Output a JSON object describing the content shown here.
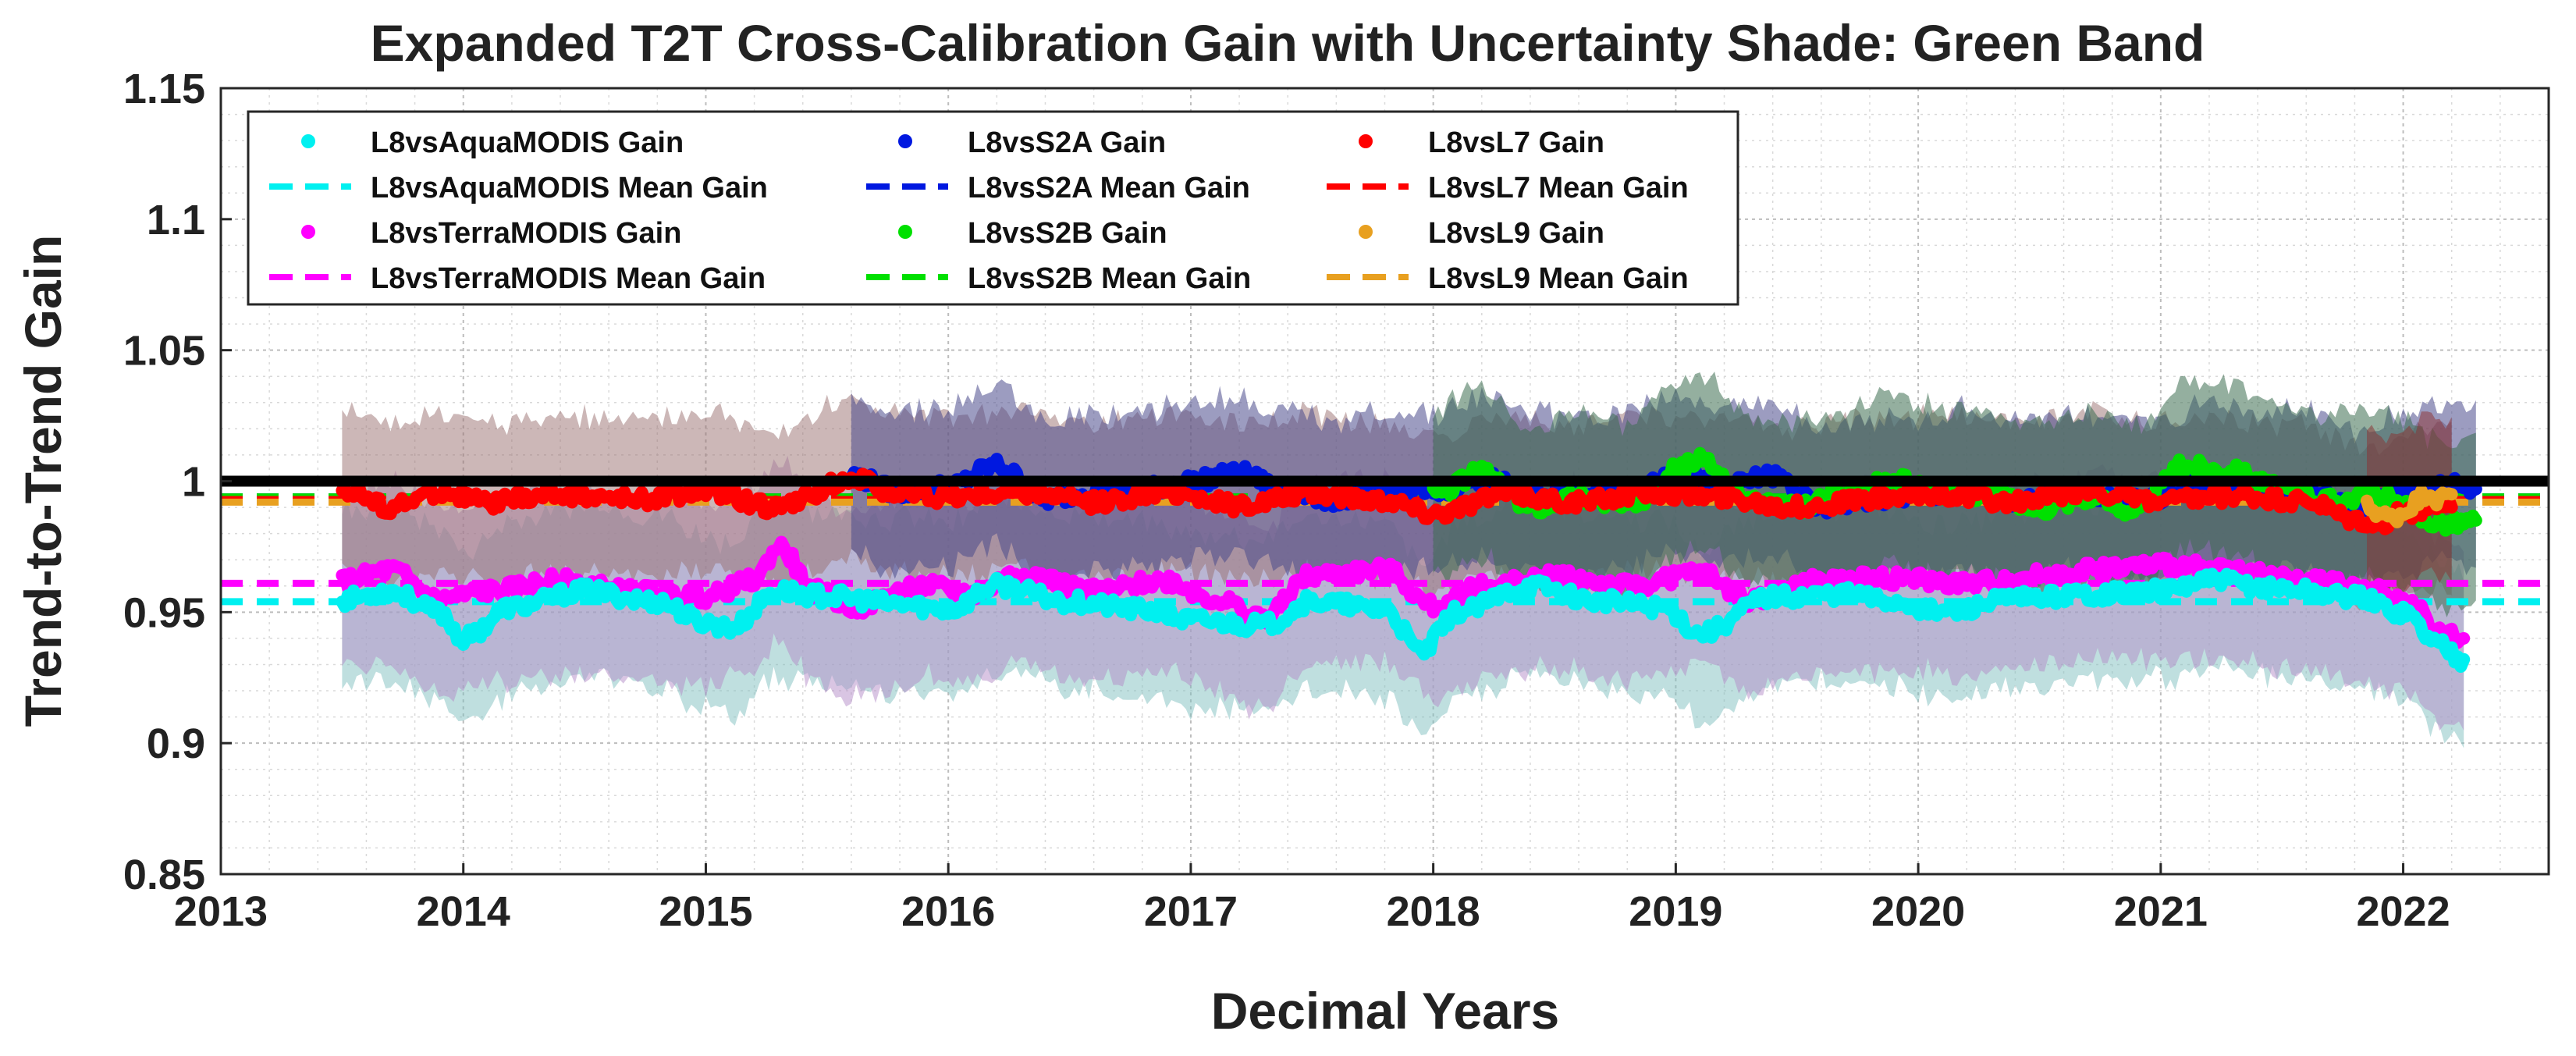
{
  "chart_data": {
    "type": "line",
    "title": "Expanded T2T Cross-Calibration Gain with Uncertainty Shade: Green Band",
    "xlabel": "Decimal Years",
    "ylabel": "Trend-to-Trend Gain",
    "xlim": [
      2013,
      2022.6
    ],
    "ylim": [
      0.85,
      1.15
    ],
    "xticks": [
      2013,
      2014,
      2015,
      2016,
      2017,
      2018,
      2019,
      2020,
      2021,
      2022
    ],
    "xtick_labels": [
      "2013",
      "2014",
      "2015",
      "2016",
      "2017",
      "2018",
      "2019",
      "2020",
      "2021",
      "2022"
    ],
    "yticks": [
      0.85,
      0.9,
      0.95,
      1.0,
      1.05,
      1.1,
      1.15
    ],
    "ytick_labels": [
      "0.85",
      "0.9",
      "0.95",
      "1",
      "1.05",
      "1.1",
      "1.15"
    ],
    "grid": true,
    "minor_grid": true,
    "legend_position": "top-left",
    "reference_line": {
      "y": 1.0,
      "color": "#000000"
    },
    "series": [
      {
        "name": "L8vsAquaMODIS Gain",
        "mean_name": "L8vsAquaMODIS Mean Gain",
        "color": "#00f0f0",
        "band_color": "#7fbfbf",
        "mean": 0.954,
        "band_half_width": 0.033,
        "x": [
          2013.5,
          2013.7,
          2013.9,
          2014.0,
          2014.2,
          2014.5,
          2014.8,
          2015.0,
          2015.1,
          2015.3,
          2015.5,
          2015.8,
          2016.0,
          2016.2,
          2016.5,
          2016.8,
          2017.0,
          2017.3,
          2017.5,
          2017.8,
          2017.95,
          2018.1,
          2018.4,
          2018.7,
          2018.95,
          2019.1,
          2019.4,
          2019.7,
          2019.9,
          2020.1,
          2020.4,
          2020.7,
          2021.0,
          2021.2,
          2021.5,
          2021.8,
          2022.0,
          2022.15,
          2022.25
        ],
        "y": [
          0.955,
          0.958,
          0.95,
          0.94,
          0.952,
          0.958,
          0.954,
          0.946,
          0.944,
          0.958,
          0.956,
          0.953,
          0.951,
          0.96,
          0.954,
          0.951,
          0.947,
          0.945,
          0.954,
          0.951,
          0.935,
          0.95,
          0.96,
          0.954,
          0.952,
          0.942,
          0.956,
          0.957,
          0.954,
          0.95,
          0.955,
          0.957,
          0.958,
          0.962,
          0.959,
          0.956,
          0.95,
          0.938,
          0.932
        ]
      },
      {
        "name": "L8vsTerraMODIS Gain",
        "mean_name": "L8vsTerraMODIS Mean Gain",
        "color": "#ff00ff",
        "band_color": "#b48cc8",
        "mean": 0.961,
        "band_half_width": 0.035,
        "x": [
          2013.5,
          2013.7,
          2013.9,
          2014.1,
          2014.4,
          2014.7,
          2015.0,
          2015.2,
          2015.3,
          2015.45,
          2015.6,
          2015.9,
          2016.1,
          2016.3,
          2016.6,
          2016.9,
          2017.1,
          2017.3,
          2017.5,
          2017.8,
          2018.0,
          2018.2,
          2018.5,
          2018.8,
          2019.1,
          2019.3,
          2019.6,
          2019.9,
          2020.2,
          2020.5,
          2020.8,
          2021.0,
          2021.3,
          2021.6,
          2021.9,
          2022.05,
          2022.15,
          2022.25
        ],
        "y": [
          0.962,
          0.966,
          0.955,
          0.958,
          0.962,
          0.958,
          0.956,
          0.962,
          0.975,
          0.958,
          0.952,
          0.96,
          0.957,
          0.965,
          0.958,
          0.962,
          0.955,
          0.948,
          0.964,
          0.966,
          0.952,
          0.96,
          0.964,
          0.96,
          0.965,
          0.955,
          0.962,
          0.963,
          0.961,
          0.964,
          0.967,
          0.968,
          0.966,
          0.962,
          0.958,
          0.952,
          0.942,
          0.94
        ]
      },
      {
        "name": "L8vsS2A Gain",
        "mean_name": "L8vsS2A Mean Gain",
        "color": "#0018e0",
        "band_color": "#4a4a8c",
        "mean": 0.994,
        "band_half_width": 0.03,
        "x": [
          2015.6,
          2015.8,
          2016.0,
          2016.2,
          2016.4,
          2016.6,
          2016.8,
          2017.0,
          2017.2,
          2017.4,
          2017.6,
          2017.8,
          2018.0,
          2018.2,
          2018.4,
          2018.6,
          2018.8,
          2019.0,
          2019.2,
          2019.4,
          2019.6,
          2019.8,
          2020.0,
          2020.2,
          2020.4,
          2020.6,
          2020.8,
          2021.0,
          2021.2,
          2021.4,
          2021.6,
          2021.8,
          2022.0,
          2022.2,
          2022.3
        ],
        "y": [
          1.002,
          0.996,
          0.998,
          1.006,
          0.993,
          0.996,
          0.997,
          1.0,
          1.003,
          0.996,
          0.993,
          0.997,
          0.996,
          1.001,
          0.996,
          0.994,
          0.997,
          1.003,
          0.998,
          1.002,
          0.99,
          0.993,
          0.994,
          0.997,
          0.992,
          0.996,
          0.994,
          0.993,
          1.0,
          0.997,
          0.996,
          0.99,
          0.995,
          0.999,
          0.997
        ]
      },
      {
        "name": "L8vsS2B Gain",
        "mean_name": "L8vsS2B Mean Gain",
        "color": "#00e000",
        "band_color": "#3c6e50",
        "mean": 0.994,
        "band_half_width": 0.032,
        "x": [
          2018.0,
          2018.2,
          2018.4,
          2018.6,
          2018.8,
          2019.0,
          2019.1,
          2019.3,
          2019.5,
          2019.7,
          2019.9,
          2020.1,
          2020.3,
          2020.5,
          2020.7,
          2020.9,
          2021.1,
          2021.3,
          2021.5,
          2021.7,
          2021.9,
          2022.0,
          2022.1,
          2022.2,
          2022.3
        ],
        "y": [
          0.995,
          1.003,
          0.99,
          0.994,
          0.99,
          1.004,
          1.008,
          0.993,
          0.99,
          0.995,
          1.0,
          0.996,
          0.995,
          0.99,
          0.994,
          0.989,
          1.006,
          1.004,
          0.997,
          0.993,
          0.995,
          0.99,
          0.985,
          0.984,
          0.985
        ]
      },
      {
        "name": "L8vsL7 Gain",
        "mean_name": "L8vsL7 Mean Gain",
        "color": "#ff0000",
        "band_color": "#9a7070",
        "mean": 0.993,
        "band_half_width": 0.03,
        "x": [
          2013.5,
          2013.7,
          2013.9,
          2014.1,
          2014.4,
          2014.7,
          2015.0,
          2015.3,
          2015.6,
          2015.8,
          2016.0,
          2016.3,
          2016.6,
          2016.9,
          2017.2,
          2017.5,
          2017.8,
          2018.0,
          2018.3,
          2018.6,
          2018.9,
          2019.2,
          2019.5,
          2019.8,
          2020.1,
          2020.4,
          2020.7,
          2021.0,
          2021.3,
          2021.6,
          2021.8,
          2021.9,
          2022.0,
          2022.1,
          2022.2
        ],
        "y": [
          0.997,
          0.99,
          0.996,
          0.992,
          0.995,
          0.993,
          0.996,
          0.99,
          1.001,
          0.995,
          0.994,
          0.996,
          0.992,
          0.996,
          0.991,
          0.995,
          0.993,
          0.988,
          0.995,
          0.992,
          0.996,
          0.994,
          0.99,
          0.993,
          0.995,
          0.992,
          0.996,
          0.992,
          0.994,
          0.992,
          0.985,
          0.983,
          0.988,
          0.99,
          0.99
        ]
      },
      {
        "name": "L8vsL9 Gain",
        "mean_name": "L8vsL9 Mean Gain",
        "color": "#e8a020",
        "band_color": "#8c3030",
        "mean": 0.992,
        "band_half_width": 0.03,
        "x": [
          2021.85,
          2021.95,
          2022.0,
          2022.05,
          2022.1,
          2022.15,
          2022.2
        ],
        "y": [
          0.99,
          0.986,
          0.988,
          0.992,
          0.996,
          0.993,
          0.995
        ]
      }
    ]
  }
}
